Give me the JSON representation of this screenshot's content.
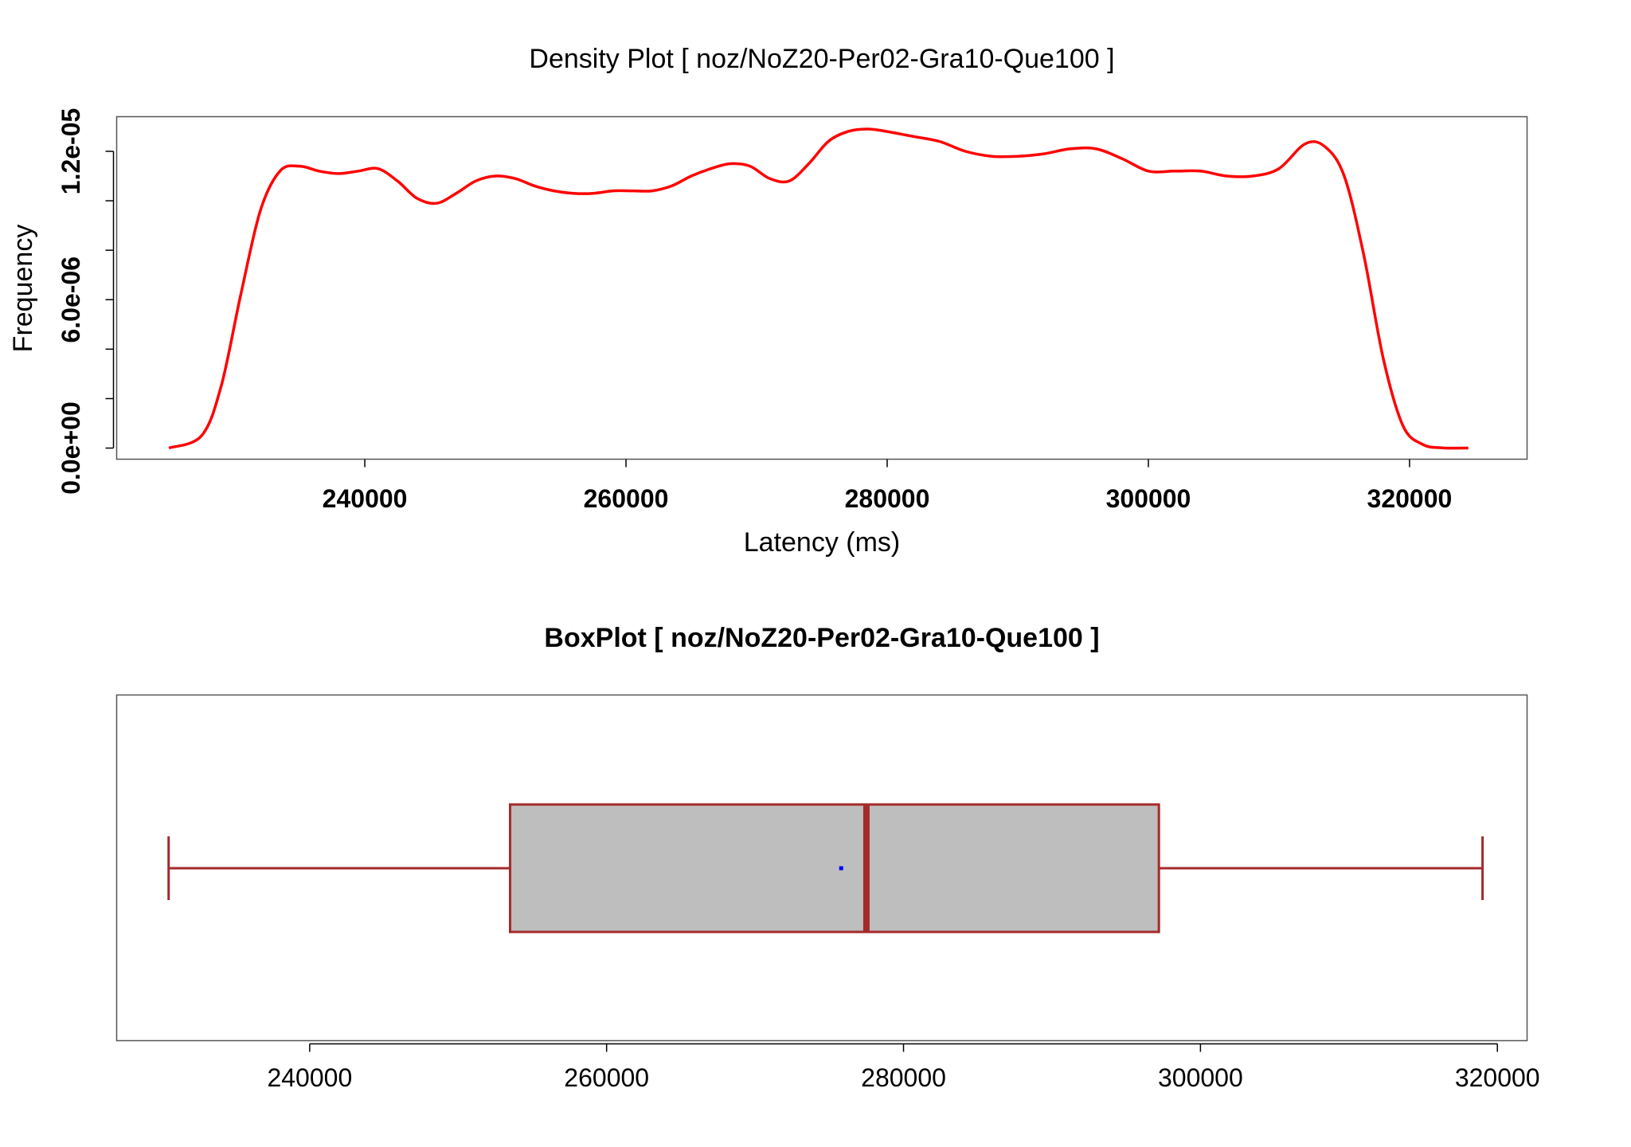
{
  "chart_data": [
    {
      "type": "line",
      "title": "Density Plot [ noz/NoZ20-Per02-Gra10-Que100 ]",
      "xlabel": "Latency (ms)",
      "ylabel": "Frequency",
      "xlim": [
        221000,
        329000
      ],
      "ylim": [
        -4.5e-07,
        1.34e-05
      ],
      "xticks": [
        240000,
        260000,
        280000,
        300000,
        320000
      ],
      "xtick_labels": [
        "240000",
        "260000",
        "280000",
        "300000",
        "320000"
      ],
      "yticks": [
        0,
        2e-06,
        4e-06,
        6e-06,
        8e-06,
        1e-05,
        1.2e-05
      ],
      "ytick_labels": [
        {
          "value": 0,
          "label": "0.0e+00"
        },
        {
          "value": 6e-06,
          "label": "6.0e-06"
        },
        {
          "value": 1.2e-05,
          "label": "1.2e-05"
        }
      ],
      "grid": false,
      "color": "#ff0000",
      "x": [
        225000,
        227500,
        229000,
        230500,
        232000,
        233500,
        235000,
        236500,
        238000,
        239500,
        241000,
        242500,
        244000,
        245500,
        247000,
        248500,
        250000,
        251500,
        253000,
        254500,
        256000,
        257500,
        259000,
        260500,
        262000,
        263500,
        265000,
        266500,
        268000,
        269500,
        271000,
        272500,
        274000,
        275500,
        277000,
        278500,
        280000,
        282000,
        284000,
        286000,
        288000,
        290000,
        292000,
        294000,
        296000,
        298000,
        300000,
        302000,
        304000,
        306000,
        308000,
        310000,
        312000,
        313500,
        315000,
        316500,
        318000,
        319500,
        321000,
        322500,
        324500
      ],
      "y": [
        0.0,
        5e-07,
        2.5e-06,
        6.2e-06,
        9.6e-06,
        1.12e-05,
        1.14e-05,
        1.12e-05,
        1.11e-05,
        1.12e-05,
        1.13e-05,
        1.08e-05,
        1.01e-05,
        9.9e-06,
        1.03e-05,
        1.08e-05,
        1.1e-05,
        1.09e-05,
        1.06e-05,
        1.04e-05,
        1.03e-05,
        1.03e-05,
        1.04e-05,
        1.04e-05,
        1.04e-05,
        1.06e-05,
        1.1e-05,
        1.13e-05,
        1.15e-05,
        1.14e-05,
        1.09e-05,
        1.08e-05,
        1.15e-05,
        1.24e-05,
        1.28e-05,
        1.29e-05,
        1.28e-05,
        1.26e-05,
        1.24e-05,
        1.2e-05,
        1.18e-05,
        1.18e-05,
        1.19e-05,
        1.21e-05,
        1.21e-05,
        1.17e-05,
        1.12e-05,
        1.12e-05,
        1.12e-05,
        1.1e-05,
        1.1e-05,
        1.13e-05,
        1.23e-05,
        1.22e-05,
        1.1e-05,
        7.8e-06,
        3.6e-06,
        9e-07,
        1.5e-07,
        1e-08,
        0.0
      ]
    },
    {
      "type": "box",
      "title": "BoxPlot [ noz/NoZ20-Per02-Gra10-Que100 ]",
      "xlabel": "",
      "ylabel": "",
      "xlim": [
        227000,
        322000
      ],
      "xticks": [
        240000,
        260000,
        280000,
        300000,
        320000
      ],
      "xtick_labels": [
        "240000",
        "260000",
        "280000",
        "300000",
        "320000"
      ],
      "orientation": "horizontal",
      "stats": {
        "min": 230500,
        "q1": 253500,
        "median": 277500,
        "mean": 275800,
        "q3": 297200,
        "max": 319000
      },
      "box_color": "#bebebe",
      "line_color": "#a52a2a",
      "mean_color": "#0000ff"
    }
  ]
}
